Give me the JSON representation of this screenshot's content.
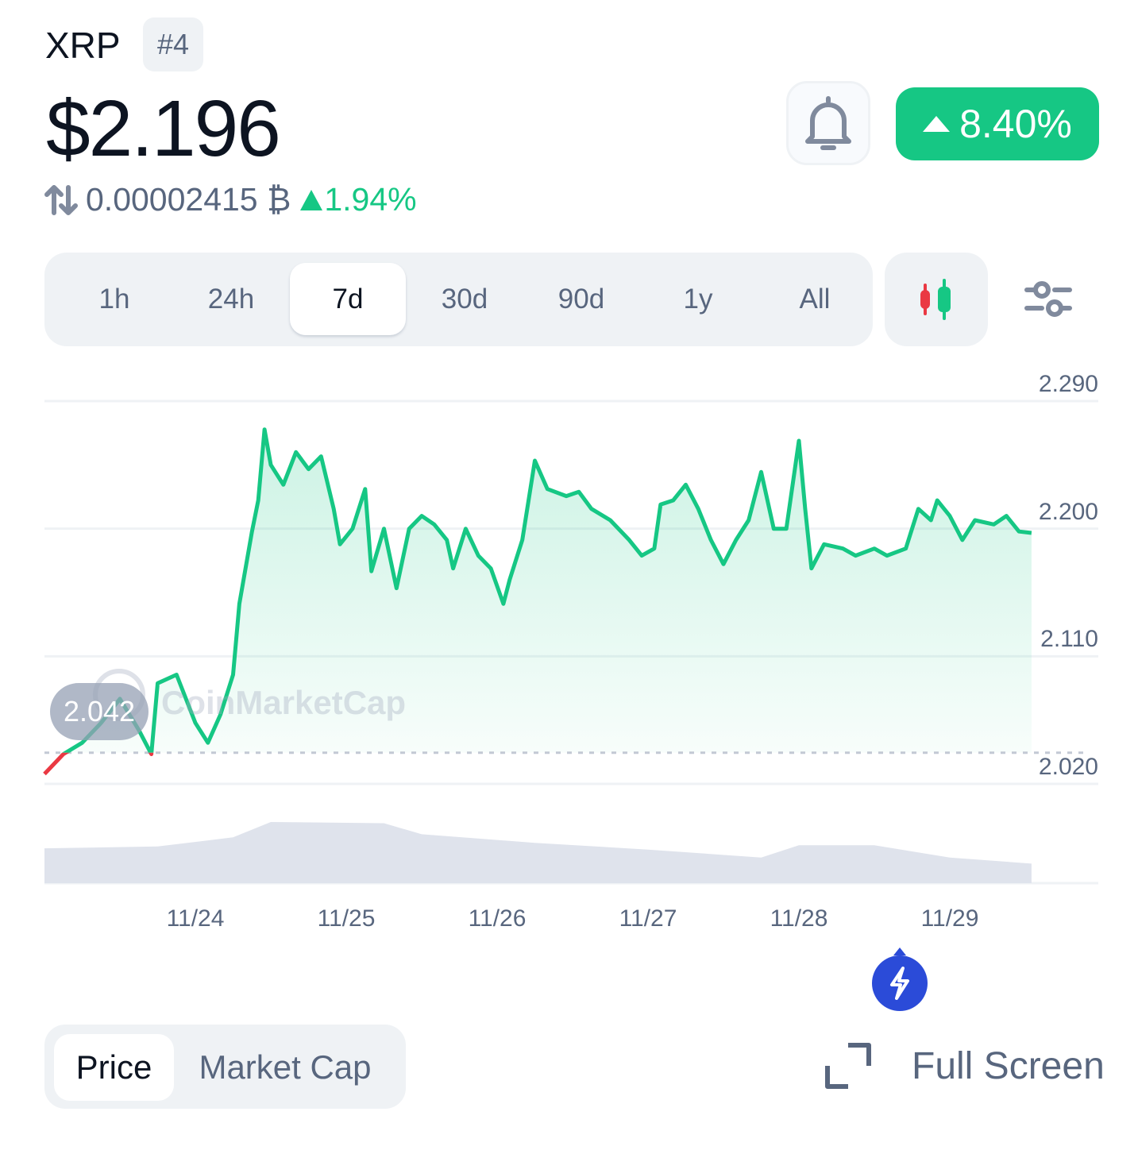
{
  "header": {
    "coin_name": "XRP",
    "rank": "#4",
    "price": "$2.196",
    "change_24h": "8.40%",
    "change_direction": "up",
    "btc_price": "0.00002415 ₿",
    "btc_change": "1.94%",
    "icons": {
      "alert": "bell-icon",
      "swap": "swap-arrows-icon",
      "up": "triangle-up-icon"
    }
  },
  "colors": {
    "up": "#16c784",
    "down": "#ea3943",
    "accent": "#3861fb",
    "muted": "#58667e",
    "surface": "#eff2f5"
  },
  "timeframes": {
    "items": [
      "1h",
      "24h",
      "7d",
      "30d",
      "90d",
      "1y",
      "All"
    ],
    "selected": "7d"
  },
  "chart_controls": {
    "candle_icon": "candlestick-icon",
    "settings_icon": "sliders-icon"
  },
  "chart_data": {
    "type": "line",
    "baseline": 2.042,
    "baseline_label": "2.042",
    "yticks": [
      "2.290",
      "2.200",
      "2.110",
      "2.020"
    ],
    "ylim": [
      2.02,
      2.29
    ],
    "xticks": [
      "11/24",
      "11/25",
      "11/26",
      "11/27",
      "11/28",
      "11/29"
    ],
    "grid": true,
    "watermark": "CoinMarketCap",
    "series": [
      {
        "points": [
          [
            "11/23 00:00",
            2.027
          ],
          [
            "11/23 03:00",
            2.041
          ],
          [
            "11/23 06:00",
            2.049
          ],
          [
            "11/23 09:00",
            2.063
          ],
          [
            "11/23 12:00",
            2.08
          ],
          [
            "11/23 15:00",
            2.058
          ],
          [
            "11/23 17:00",
            2.041
          ],
          [
            "11/23 18:00",
            2.091
          ],
          [
            "11/23 21:00",
            2.097
          ],
          [
            "11/24 00:00",
            2.063
          ],
          [
            "11/24 02:00",
            2.049
          ],
          [
            "11/24 04:00",
            2.069
          ],
          [
            "11/24 06:00",
            2.097
          ],
          [
            "11/24 07:00",
            2.147
          ],
          [
            "11/24 09:00",
            2.198
          ],
          [
            "11/24 10:00",
            2.22
          ],
          [
            "11/24 11:00",
            2.27
          ],
          [
            "11/24 12:00",
            2.245
          ],
          [
            "11/24 14:00",
            2.231
          ],
          [
            "11/24 16:00",
            2.254
          ],
          [
            "11/24 18:00",
            2.242
          ],
          [
            "11/24 20:00",
            2.251
          ],
          [
            "11/24 22:00",
            2.214
          ],
          [
            "11/24 23:00",
            2.189
          ],
          [
            "11/25 01:00",
            2.2
          ],
          [
            "11/25 03:00",
            2.228
          ],
          [
            "11/25 04:00",
            2.17
          ],
          [
            "11/25 06:00",
            2.2
          ],
          [
            "11/25 08:00",
            2.158
          ],
          [
            "11/25 10:00",
            2.2
          ],
          [
            "11/25 12:00",
            2.209
          ],
          [
            "11/25 14:00",
            2.203
          ],
          [
            "11/25 16:00",
            2.192
          ],
          [
            "11/25 17:00",
            2.172
          ],
          [
            "11/25 19:00",
            2.2
          ],
          [
            "11/25 21:00",
            2.181
          ],
          [
            "11/25 23:00",
            2.172
          ],
          [
            "11/26 01:00",
            2.147
          ],
          [
            "11/26 02:00",
            2.164
          ],
          [
            "11/26 04:00",
            2.192
          ],
          [
            "11/26 06:00",
            2.248
          ],
          [
            "11/26 08:00",
            2.228
          ],
          [
            "11/26 11:00",
            2.223
          ],
          [
            "11/26 13:00",
            2.226
          ],
          [
            "11/26 15:00",
            2.214
          ],
          [
            "11/26 18:00",
            2.206
          ],
          [
            "11/26 21:00",
            2.192
          ],
          [
            "11/26 23:00",
            2.181
          ],
          [
            "11/27 01:00",
            2.186
          ],
          [
            "11/27 02:00",
            2.217
          ],
          [
            "11/27 04:00",
            2.22
          ],
          [
            "11/27 06:00",
            2.231
          ],
          [
            "11/27 08:00",
            2.214
          ],
          [
            "11/27 10:00",
            2.192
          ],
          [
            "11/27 12:00",
            2.175
          ],
          [
            "11/27 14:00",
            2.192
          ],
          [
            "11/27 16:00",
            2.206
          ],
          [
            "11/27 18:00",
            2.24
          ],
          [
            "11/27 20:00",
            2.2
          ],
          [
            "11/27 22:00",
            2.2
          ],
          [
            "11/28 00:00",
            2.262
          ],
          [
            "11/28 01:00",
            2.214
          ],
          [
            "11/28 02:00",
            2.172
          ],
          [
            "11/28 04:00",
            2.189
          ],
          [
            "11/28 07:00",
            2.186
          ],
          [
            "11/28 09:00",
            2.181
          ],
          [
            "11/28 12:00",
            2.186
          ],
          [
            "11/28 14:00",
            2.181
          ],
          [
            "11/28 17:00",
            2.186
          ],
          [
            "11/28 19:00",
            2.214
          ],
          [
            "11/28 21:00",
            2.206
          ],
          [
            "11/28 22:00",
            2.22
          ],
          [
            "11/29 00:00",
            2.209
          ],
          [
            "11/29 02:00",
            2.192
          ],
          [
            "11/29 04:00",
            2.206
          ],
          [
            "11/29 07:00",
            2.203
          ],
          [
            "11/29 09:00",
            2.209
          ],
          [
            "11/29 11:00",
            2.198
          ],
          [
            "11/29 13:00",
            2.197
          ]
        ]
      }
    ],
    "volume_relative": [
      [
        "11/23 00:00",
        0.57
      ],
      [
        "11/23 18:00",
        0.6
      ],
      [
        "11/24 06:00",
        0.75
      ],
      [
        "11/24 12:00",
        1.0
      ],
      [
        "11/25 06:00",
        0.98
      ],
      [
        "11/25 12:00",
        0.8
      ],
      [
        "11/26 06:00",
        0.66
      ],
      [
        "11/27 00:00",
        0.55
      ],
      [
        "11/27 18:00",
        0.42
      ],
      [
        "11/28 00:00",
        0.62
      ],
      [
        "11/28 12:00",
        0.62
      ],
      [
        "11/29 00:00",
        0.42
      ],
      [
        "11/29 13:00",
        0.32
      ]
    ]
  },
  "chart_mode": {
    "items": [
      "Price",
      "Market Cap"
    ],
    "selected": "Price"
  },
  "fullscreen": {
    "label": "Full Screen",
    "icon": "expand-icon"
  },
  "fab": {
    "icon": "lightning-icon"
  }
}
